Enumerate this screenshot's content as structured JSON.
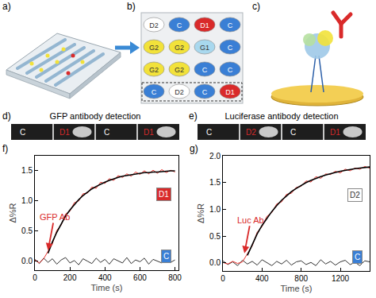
{
  "figure": {
    "panel_labels": [
      "a)",
      "b)",
      "c)",
      "d)",
      "e)",
      "f)",
      "g)"
    ],
    "array": [
      [
        "D2",
        "C",
        "D1",
        "C"
      ],
      [
        "G2",
        "G2",
        "G1",
        "C"
      ],
      [
        "G2",
        "G2",
        "C",
        "C"
      ],
      [
        "C",
        "D2",
        "C",
        "D1"
      ]
    ],
    "strips": [
      {
        "title": "GFP antibody detection",
        "labels": [
          "C",
          "D1",
          "C",
          "D1"
        ]
      },
      {
        "title": "Luciferase antibody detection",
        "labels": [
          "C",
          "D2",
          "C",
          "D1"
        ]
      }
    ]
  },
  "chart_data": [
    {
      "type": "line",
      "x_label": "Time (s)",
      "y_label": "Δ%R",
      "xlim": [
        0,
        820
      ],
      "xticks": [
        0,
        200,
        400,
        600,
        800
      ],
      "ylim": [
        -0.15,
        1.75
      ],
      "yticks": [
        {
          "value": 0,
          "label": "0.0"
        },
        0.5,
        {
          "value": 1,
          "label": "1.0"
        },
        1.5
      ],
      "grid": false,
      "annotations": [
        {
          "text": "GFP Ab",
          "x": 75,
          "y": 0.18
        }
      ],
      "x": [
        0,
        25,
        50,
        75,
        100,
        125,
        150,
        175,
        200,
        225,
        250,
        275,
        300,
        325,
        350,
        375,
        400,
        425,
        450,
        475,
        500,
        525,
        550,
        575,
        600,
        625,
        650,
        675,
        700,
        725,
        750,
        775,
        800
      ],
      "series": [
        {
          "name": "C",
          "color": "#333333",
          "values": [
            0.03,
            -0.04,
            0.05,
            -0.02,
            0.04,
            -0.05,
            0.02,
            0.06,
            -0.03,
            0.01,
            -0.06,
            0.04,
            0.0,
            -0.04,
            0.05,
            -0.02,
            0.03,
            -0.05,
            0.04,
            0.01,
            -0.03,
            0.06,
            -0.04,
            0.02,
            -0.01,
            0.05,
            -0.05,
            0.03,
            0.0,
            -0.03,
            0.04,
            -0.02,
            0.02
          ]
        },
        {
          "name": "D1",
          "color": "#e8312c",
          "values": [
            0.02,
            -0.03,
            0.04,
            0.16,
            0.29,
            0.51,
            0.6,
            0.78,
            0.83,
            0.97,
            1.0,
            1.12,
            1.13,
            1.23,
            1.21,
            1.31,
            1.29,
            1.37,
            1.34,
            1.42,
            1.39,
            1.45,
            1.41,
            1.48,
            1.44,
            1.5,
            1.45,
            1.51,
            1.46,
            1.52,
            1.47,
            1.51,
            1.48
          ]
        },
        {
          "color": "#000000",
          "values": [
            null,
            null,
            null,
            0.13,
            0.32,
            0.48,
            0.62,
            0.75,
            0.85,
            0.94,
            1.02,
            1.09,
            1.15,
            1.2,
            1.24,
            1.28,
            1.31,
            1.34,
            1.37,
            1.39,
            1.41,
            1.42,
            1.43,
            1.45,
            1.46,
            1.47,
            1.47,
            1.48,
            1.48,
            1.49,
            1.49,
            1.5,
            1.5
          ]
        }
      ]
    },
    {
      "type": "line",
      "x_label": "Time (s)",
      "y_label": "Δ%R",
      "xlim": [
        0,
        1500
      ],
      "xticks": [
        0,
        400,
        800,
        1200
      ],
      "ylim": [
        -0.15,
        2.0
      ],
      "yticks": [
        {
          "value": 0,
          "label": "0.0"
        },
        0.5,
        {
          "value": 1,
          "label": "1.0"
        },
        1.5,
        {
          "value": 2,
          "label": "2.0"
        }
      ],
      "grid": false,
      "annotations": [
        {
          "text": "Luc Ab",
          "x": 220,
          "y": 0.18
        }
      ],
      "x": [
        0,
        50,
        100,
        150,
        200,
        250,
        300,
        350,
        400,
        450,
        500,
        550,
        600,
        650,
        700,
        750,
        800,
        850,
        900,
        950,
        1000,
        1050,
        1100,
        1150,
        1200,
        1250,
        1300,
        1350,
        1400,
        1450,
        1500
      ],
      "series": [
        {
          "name": "C",
          "color": "#333333",
          "values": [
            0.04,
            -0.03,
            0.02,
            -0.05,
            0.05,
            -0.02,
            0.03,
            -0.04,
            0.06,
            0.0,
            -0.05,
            0.03,
            -0.02,
            0.05,
            -0.04,
            0.02,
            0.04,
            -0.03,
            0.01,
            -0.05,
            0.06,
            -0.02,
            0.03,
            -0.04,
            0.02,
            0.05,
            -0.03,
            0.01,
            -0.05,
            0.04,
            0.02
          ]
        },
        {
          "name": "D2",
          "color": "#e8312c",
          "values": [
            0.01,
            -0.02,
            0.03,
            -0.01,
            0.02,
            0.17,
            0.32,
            0.57,
            0.68,
            0.87,
            0.94,
            1.1,
            1.14,
            1.28,
            1.3,
            1.41,
            1.43,
            1.53,
            1.51,
            1.61,
            1.58,
            1.66,
            1.65,
            1.71,
            1.68,
            1.75,
            1.72,
            1.77,
            1.75,
            1.8,
            1.77
          ]
        },
        {
          "color": "#000000",
          "values": [
            null,
            null,
            null,
            null,
            null,
            0.14,
            0.35,
            0.54,
            0.7,
            0.84,
            0.96,
            1.07,
            1.17,
            1.25,
            1.33,
            1.39,
            1.45,
            1.5,
            1.54,
            1.58,
            1.61,
            1.64,
            1.67,
            1.69,
            1.71,
            1.73,
            1.74,
            1.76,
            1.77,
            1.78,
            1.79
          ]
        }
      ]
    }
  ]
}
